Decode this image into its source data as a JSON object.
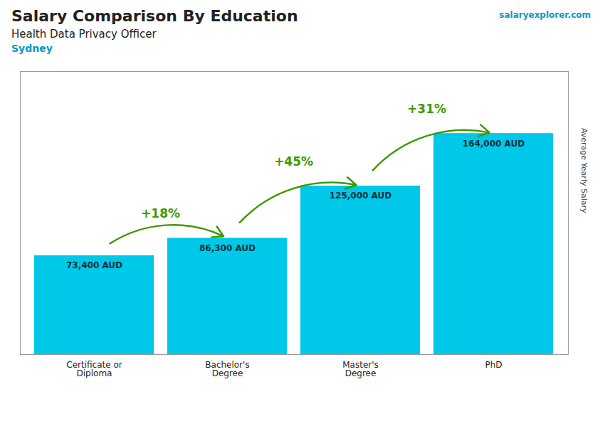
{
  "chart_data": {
    "type": "bar",
    "title": "Salary Comparison By Education",
    "subtitle": "Health Data Privacy Officer",
    "location": "Sydney",
    "source": "salaryexplorer.com",
    "ylabel": "Average Yearly Salary",
    "categories": [
      "Certificate or\nDiploma",
      "Bachelor's\nDegree",
      "Master's\nDegree",
      "PhD"
    ],
    "values": [
      73400,
      86300,
      125000,
      164000
    ],
    "value_labels": [
      "73,400 AUD",
      "86,300 AUD",
      "125,000 AUD",
      "164,000 AUD"
    ],
    "data_labels": true,
    "annotations": [
      "+18%",
      "+45%",
      "+31%"
    ],
    "color": "#00c8e8",
    "ylim": [
      0,
      210000
    ],
    "tick_labels": "x",
    "grid": false
  }
}
